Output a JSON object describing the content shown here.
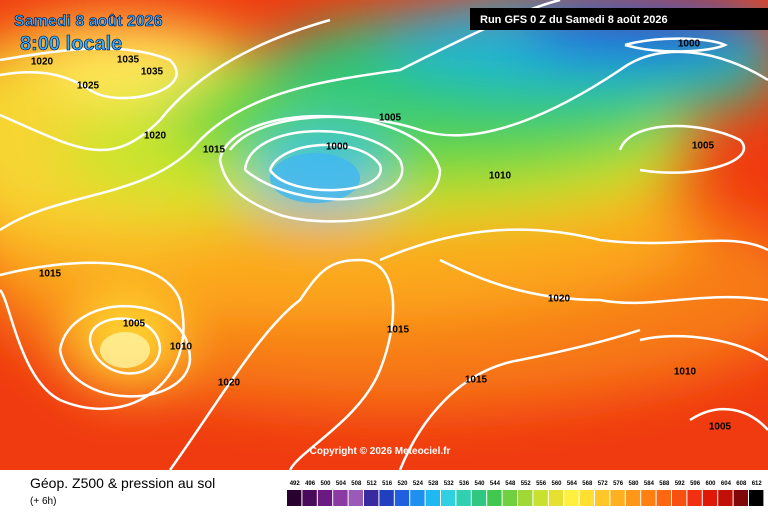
{
  "header": {
    "date": "Samedi 8 août 2026",
    "time": "8:00 locale",
    "run": "Run GFS 0 Z du Samedi 8 août 2026"
  },
  "copyright": "Copyright © 2026 Meteociel.fr",
  "footer": {
    "title": "Géop. Z500 & pression au sol",
    "lead": "(+ 6h)"
  },
  "colorbar": {
    "labels": [
      492,
      496,
      500,
      504,
      508,
      512,
      516,
      520,
      524,
      528,
      532,
      536,
      540,
      544,
      548,
      552,
      556,
      560,
      564,
      568,
      572,
      576,
      580,
      584,
      588,
      592,
      596,
      600,
      604,
      608,
      612
    ]
  },
  "isobar_labels": [
    1020,
    1035,
    1035,
    1025,
    1020,
    1015,
    1005,
    1000,
    1010,
    1005,
    1000,
    1015,
    1005,
    1010,
    1020,
    1015,
    1020,
    1015,
    1010,
    1005
  ]
}
